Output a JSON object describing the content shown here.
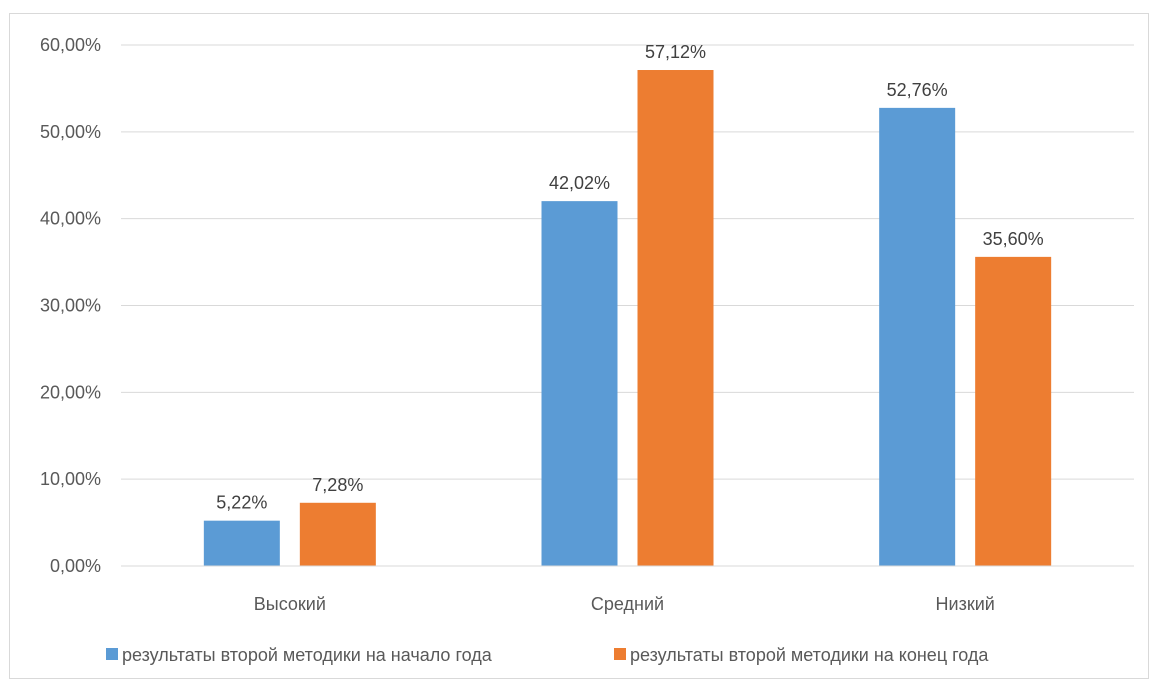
{
  "chart_data": {
    "type": "bar",
    "categories": [
      "Высокий",
      "Средний",
      "Низкий"
    ],
    "series": [
      {
        "name": "результаты второй методики на начало года",
        "values": [
          5.22,
          42.02,
          52.76
        ],
        "labels": [
          "5,22%",
          "42,02%",
          "52,76%"
        ],
        "color": "#5B9BD5"
      },
      {
        "name": "результаты второй методики на конец года",
        "values": [
          7.28,
          57.12,
          35.6
        ],
        "labels": [
          "7,28%",
          "57,12%",
          "35,60%"
        ],
        "color": "#ED7D31"
      }
    ],
    "y_ticks": [
      "0,00%",
      "10,00%",
      "20,00%",
      "30,00%",
      "40,00%",
      "50,00%",
      "60,00%"
    ],
    "ylim": [
      0,
      60
    ],
    "grid": true,
    "legend_position": "bottom"
  }
}
